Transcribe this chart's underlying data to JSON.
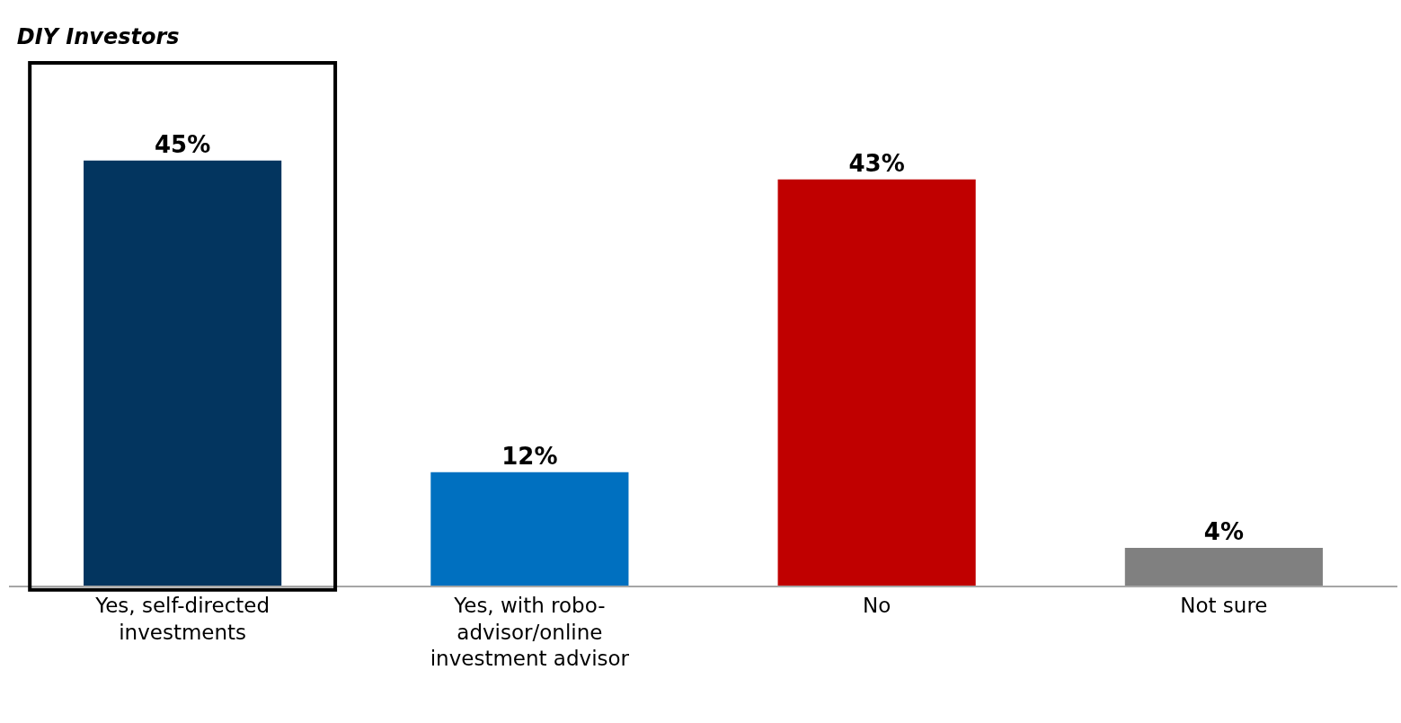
{
  "chart_data": {
    "type": "bar",
    "title": "DIY Investors",
    "categories": [
      "Yes, self-directed investments",
      "Yes, with robo-advisor/online investment advisor",
      "No",
      "Not sure"
    ],
    "values": [
      45,
      12,
      43,
      4
    ],
    "colors": [
      "#03355f",
      "#0070c0",
      "#c00000",
      "#808080"
    ],
    "value_labels": [
      "45%",
      "12%",
      "43%",
      "4%"
    ]
  }
}
